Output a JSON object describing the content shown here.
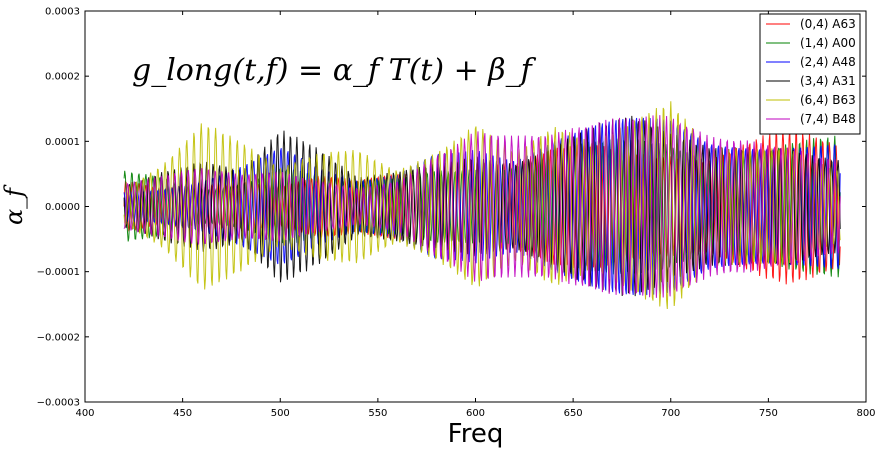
{
  "chart_data": {
    "type": "line",
    "title": "",
    "xlabel": "Freq",
    "ylabel": "α_f",
    "annotation": "g_long(t,f) = α_f T(t) + β_f",
    "xlim": [
      400,
      800
    ],
    "ylim": [
      -0.0003,
      0.0003
    ],
    "x_ticks": [
      400,
      450,
      500,
      550,
      600,
      650,
      700,
      750,
      800
    ],
    "x_tick_labels": [
      "400",
      "450",
      "500",
      "550",
      "600",
      "650",
      "700",
      "750",
      "800"
    ],
    "y_ticks": [
      -0.0003,
      -0.0002,
      -0.0001,
      0.0,
      0.0001,
      0.0002,
      0.0003
    ],
    "y_tick_labels": [
      "−0.0003",
      "−0.0002",
      "−0.0001",
      "0.0000",
      "0.0001",
      "0.0002",
      "0.0003"
    ],
    "grid": false,
    "legend_position": "top-right",
    "x_range": [
      420,
      787
    ],
    "series": [
      {
        "name": "(0,4) A63",
        "color": "#ff0000",
        "period": 3.4,
        "envelope_x": [
          420,
          440,
          460,
          480,
          500,
          520,
          540,
          560,
          580,
          600,
          620,
          640,
          660,
          680,
          700,
          720,
          740,
          760,
          787
        ],
        "envelope": [
          4e-05,
          3e-05,
          5e-05,
          6e-05,
          4e-05,
          5e-05,
          4e-05,
          6e-05,
          9e-05,
          0.0001,
          8e-05,
          9e-05,
          0.0001,
          0.00011,
          0.00012,
          0.0001,
          0.00011,
          0.00012,
          0.00011
        ]
      },
      {
        "name": "(1,4) A00",
        "color": "#008000",
        "period": 3.6,
        "envelope_x": [
          420,
          440,
          460,
          480,
          500,
          520,
          540,
          560,
          580,
          600,
          620,
          640,
          660,
          680,
          700,
          720,
          740,
          760,
          787
        ],
        "envelope": [
          6e-05,
          6e-05,
          4e-05,
          5e-05,
          7e-05,
          5e-05,
          4e-05,
          5e-05,
          8e-05,
          9e-05,
          8e-05,
          0.0001,
          0.0001,
          0.00011,
          0.00012,
          0.00011,
          0.00012,
          0.00012,
          0.00011
        ]
      },
      {
        "name": "(2,4) A48",
        "color": "#0000ff",
        "period": 3.5,
        "envelope_x": [
          420,
          440,
          460,
          480,
          500,
          520,
          540,
          560,
          580,
          600,
          620,
          640,
          660,
          680,
          700,
          720,
          740,
          760,
          787
        ],
        "envelope": [
          3e-05,
          4e-05,
          6e-05,
          8e-05,
          0.0001,
          6e-05,
          4e-05,
          6e-05,
          0.00012,
          0.00014,
          0.0001,
          0.00012,
          0.00013,
          0.00014,
          0.00015,
          0.00013,
          0.00014,
          0.00014,
          0.00012
        ]
      },
      {
        "name": "(3,4) A31",
        "color": "#000000",
        "period": 3.3,
        "envelope_x": [
          420,
          440,
          460,
          480,
          500,
          520,
          540,
          560,
          580,
          600,
          620,
          640,
          660,
          680,
          700,
          720,
          740,
          760,
          787
        ],
        "envelope": [
          5e-05,
          8e-05,
          9e-05,
          6e-05,
          0.00012,
          9e-05,
          5e-05,
          7e-05,
          0.0001,
          0.00012,
          9e-05,
          0.00011,
          0.00013,
          0.00014,
          0.00012,
          0.00011,
          0.00013,
          0.00014,
          0.0001
        ]
      },
      {
        "name": "(6,4) B63",
        "color": "#bfbf00",
        "period": 3.7,
        "envelope_x": [
          420,
          440,
          460,
          480,
          500,
          520,
          540,
          560,
          580,
          600,
          620,
          640,
          660,
          680,
          700,
          720,
          740,
          760,
          787
        ],
        "envelope": [
          4e-05,
          8e-05,
          0.00014,
          0.0001,
          6e-05,
          9e-05,
          0.00011,
          8e-05,
          0.00013,
          0.00019,
          0.00011,
          0.00014,
          0.0001,
          0.00013,
          0.00017,
          0.00011,
          0.00012,
          0.00014,
          8e-05
        ]
      },
      {
        "name": "(7,4) B48",
        "color": "#bf00bf",
        "period": 3.45,
        "envelope_x": [
          420,
          440,
          460,
          480,
          500,
          520,
          540,
          560,
          580,
          600,
          620,
          640,
          660,
          680,
          700,
          720,
          740,
          760,
          787
        ],
        "envelope": [
          4e-05,
          5e-05,
          6e-05,
          5e-05,
          6e-05,
          5e-05,
          4e-05,
          6e-05,
          0.00012,
          0.00016,
          0.00013,
          0.00012,
          0.00013,
          0.00014,
          0.00015,
          0.00013,
          0.00014,
          0.00014,
          0.00011
        ]
      }
    ]
  }
}
